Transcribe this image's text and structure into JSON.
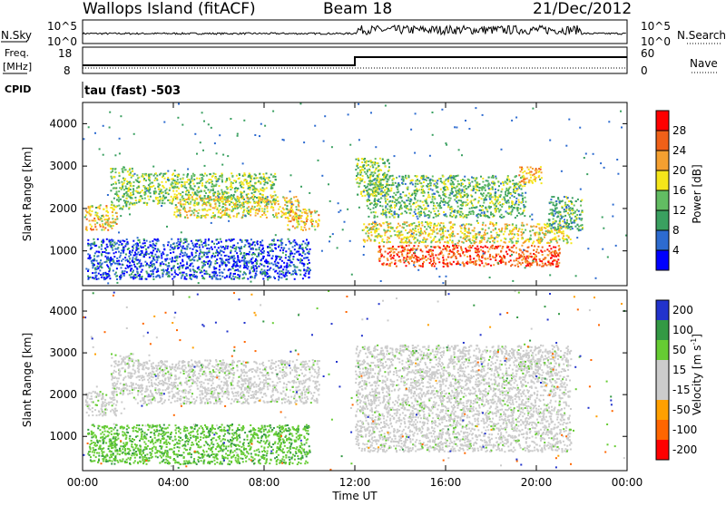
{
  "header": {
    "title_left": "Wallops Island (fitACF)",
    "title_mid": "Beam 18",
    "title_right": "21/Dec/2012"
  },
  "strips": {
    "nsky_label": "N.Sky",
    "nsearch_label": "N.Search",
    "ntick_top": "10^5",
    "ntick_bottom": "10^0",
    "freq_label_line1": "Freq.",
    "freq_label_line2": "[MHz]",
    "freq_ticks": [
      "18",
      "8"
    ],
    "nave_label": "Nave",
    "nave_ticks": [
      "60",
      "0"
    ],
    "cpid_label": "CPID",
    "cpid_text": "tau (fast) -503"
  },
  "colors": {
    "power": [
      "#0000ff",
      "#2d6bd0",
      "#3aa060",
      "#62bc62",
      "#f5e61a",
      "#f5a030",
      "#f06018",
      "#ff0000"
    ],
    "velocity": [
      "#ff0000",
      "#ff6600",
      "#ffa000",
      "#cccccc",
      "#cccccc",
      "#66cc33",
      "#339944",
      "#2233cc"
    ]
  },
  "chart_data": [
    {
      "type": "heatmap",
      "name": "power",
      "xlabel": "",
      "ylabel": "Slant Range [km]",
      "ylim": [
        180,
        4500
      ],
      "xlim": [
        "00:00",
        "24:00"
      ],
      "yticks": [
        "1000",
        "2000",
        "3000",
        "4000"
      ],
      "colorbar_label": "Power [dB]",
      "colorbar_ticks": [
        "4",
        "8",
        "12",
        "16",
        "20",
        "24",
        "28"
      ],
      "colorbar_range": [
        0,
        32
      ],
      "bands": [
        {
          "t0": 0.1,
          "t1": 1.5,
          "r0": 1500,
          "r1": 2100,
          "level": 20
        },
        {
          "t0": 1.2,
          "t1": 2.2,
          "r0": 2000,
          "r1": 3000,
          "level": 14
        },
        {
          "t0": 2.2,
          "t1": 8.5,
          "r0": 2100,
          "r1": 2850,
          "level": 14
        },
        {
          "t0": 4.0,
          "t1": 9.5,
          "r0": 1800,
          "r1": 2300,
          "level": 18
        },
        {
          "t0": 9.0,
          "t1": 10.4,
          "r0": 1500,
          "r1": 2000,
          "level": 20
        },
        {
          "t0": 0.2,
          "t1": 10.0,
          "r0": 350,
          "r1": 1300,
          "level": 5
        },
        {
          "t0": 12.0,
          "t1": 13.5,
          "r0": 2300,
          "r1": 3200,
          "level": 14
        },
        {
          "t0": 12.5,
          "t1": 19.5,
          "r0": 1800,
          "r1": 2800,
          "level": 13
        },
        {
          "t0": 12.3,
          "t1": 21.5,
          "r0": 1200,
          "r1": 1700,
          "level": 18
        },
        {
          "t0": 13.0,
          "t1": 21.0,
          "r0": 650,
          "r1": 1150,
          "level": 26
        },
        {
          "t0": 19.2,
          "t1": 20.2,
          "r0": 2600,
          "r1": 3000,
          "level": 22
        },
        {
          "t0": 20.5,
          "t1": 22.0,
          "r0": 1500,
          "r1": 2300,
          "level": 12
        }
      ]
    },
    {
      "type": "heatmap",
      "name": "velocity",
      "xlabel": "Time UT",
      "ylabel": "Slant Range [km]",
      "ylim": [
        180,
        4500
      ],
      "xlim": [
        "00:00",
        "24:00"
      ],
      "xticks": [
        "00:00",
        "04:00",
        "08:00",
        "12:00",
        "16:00",
        "20:00",
        "00:00"
      ],
      "yticks": [
        "1000",
        "2000",
        "3000",
        "4000"
      ],
      "colorbar_label": "Velocity [m s^-1]",
      "colorbar_ticks": [
        "200",
        "100",
        "50",
        "15",
        "-15",
        "-50",
        "-100",
        "-200"
      ],
      "bands": [
        {
          "t0": 0.1,
          "t1": 1.5,
          "r0": 1500,
          "r1": 2100,
          "vel": 0
        },
        {
          "t0": 1.2,
          "t1": 2.2,
          "r0": 2000,
          "r1": 3000,
          "vel": 0
        },
        {
          "t0": 2.2,
          "t1": 10.4,
          "r0": 1800,
          "r1": 2850,
          "vel": 0
        },
        {
          "t0": 0.2,
          "t1": 10.0,
          "r0": 350,
          "r1": 1300,
          "vel": 40
        },
        {
          "t0": 12.0,
          "t1": 21.5,
          "r0": 650,
          "r1": 3200,
          "vel": 0
        },
        {
          "t0": 19.2,
          "t1": 20.2,
          "r0": 2600,
          "r1": 3000,
          "vel": 0
        }
      ]
    }
  ]
}
